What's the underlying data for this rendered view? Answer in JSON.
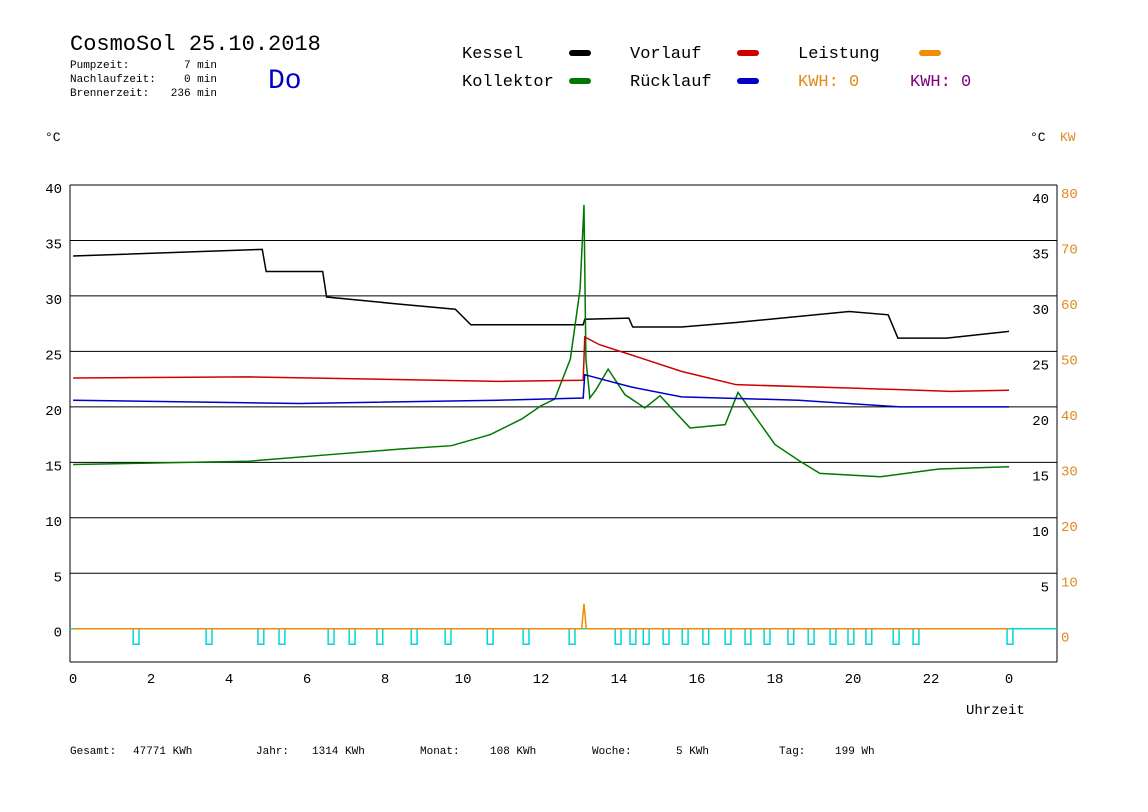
{
  "chart_data": {
    "type": "line",
    "title": "CosmoSol 25.10.2018",
    "day": "Do",
    "info": [
      {
        "label": "Pumpzeit:",
        "value": "7 min"
      },
      {
        "label": "Nachlaufzeit:",
        "value": "0 min"
      },
      {
        "label": "Brennerzeit:",
        "value": "236 min"
      }
    ],
    "y_label": "°C",
    "y_right_label": "°C",
    "y2_label": "KW",
    "x_label": "Uhrzeit",
    "kwh_labels": [
      {
        "text": "KWH: 0",
        "color": "#e08a1e"
      },
      {
        "text": "KWH: 0",
        "color": "#800080"
      }
    ],
    "footer": [
      {
        "label": "Gesamt:",
        "value": "47771 KWh"
      },
      {
        "label": "Jahr:",
        "value": "1314 KWh"
      },
      {
        "label": "Monat:",
        "value": "108 KWh"
      },
      {
        "label": "Woche:",
        "value": "5 KWh"
      },
      {
        "label": "Tag:",
        "value": "199 Wh"
      }
    ],
    "xlim": [
      -0.08,
      25.23
    ],
    "xticks": [
      0,
      2,
      4,
      6,
      8,
      10,
      12,
      14,
      16,
      18,
      20,
      22,
      {
        "value": 24,
        "label": "0"
      }
    ],
    "ylim": [
      -3,
      40
    ],
    "yticks": [
      0,
      5,
      10,
      15,
      20,
      25,
      30,
      35,
      40
    ],
    "yticks_right": [
      5,
      10,
      15,
      20,
      25,
      30,
      35,
      40
    ],
    "y2lim": [
      -6,
      80
    ],
    "y2ticks": [
      0,
      10,
      20,
      30,
      40,
      50,
      60,
      70,
      80
    ],
    "grid": true,
    "series": [
      {
        "name": "Kessel",
        "color": "#000000",
        "x": [
          0,
          4.85,
          4.95,
          6.4,
          6.5,
          8.26,
          9.8,
          10.2,
          13.08,
          13.12,
          14.25,
          14.35,
          15.6,
          17.0,
          19.9,
          20.9,
          21.15,
          22.4,
          24.0
        ],
        "values": [
          33.6,
          34.2,
          32.2,
          32.2,
          29.9,
          29.3,
          28.8,
          27.4,
          27.4,
          27.9,
          28.0,
          27.2,
          27.2,
          27.6,
          28.6,
          28.3,
          26.2,
          26.2,
          26.8
        ]
      },
      {
        "name": "Kollektor",
        "color": "#007800",
        "x": [
          0,
          4.5,
          6.6,
          8.4,
          9.7,
          10.7,
          11.5,
          12.0,
          12.35,
          12.75,
          13.0,
          13.1,
          13.15,
          13.25,
          13.4,
          13.72,
          14.15,
          14.66,
          15.05,
          15.82,
          16.72,
          17.05,
          18.0,
          18.64,
          19.15,
          20.7,
          22.2,
          24.0
        ],
        "values": [
          14.8,
          15.1,
          15.7,
          16.2,
          16.5,
          17.5,
          18.9,
          20.1,
          20.7,
          24.3,
          30.6,
          38.2,
          24.3,
          20.8,
          21.5,
          23.4,
          21.1,
          19.9,
          21.0,
          18.1,
          18.4,
          21.3,
          16.6,
          15.1,
          14.0,
          13.7,
          14.4,
          14.6
        ]
      },
      {
        "name": "Vorlauf",
        "color": "#d00000",
        "x": [
          0,
          4.5,
          10.9,
          13.08,
          13.12,
          13.5,
          14.3,
          15.6,
          17.0,
          19.9,
          22.5,
          24.0
        ],
        "values": [
          22.6,
          22.7,
          22.3,
          22.4,
          26.3,
          25.6,
          24.7,
          23.2,
          22.0,
          21.7,
          21.4,
          21.5
        ]
      },
      {
        "name": "Rücklauf",
        "color": "#0000c8",
        "x": [
          0,
          5.8,
          10.9,
          13.08,
          13.12,
          14.3,
          15.6,
          18.6,
          21.2,
          24.0
        ],
        "values": [
          20.6,
          20.3,
          20.6,
          20.8,
          22.9,
          21.8,
          20.9,
          20.6,
          20.0,
          20.0
        ]
      },
      {
        "name": "Leistung",
        "color": "#f08c00",
        "axis": "y2",
        "x": [
          0,
          13.04,
          13.1,
          13.16,
          24.0
        ],
        "values": [
          0,
          0,
          4.5,
          0,
          0
        ]
      }
    ],
    "pump": {
      "color": "#00d8d8",
      "low": -1.4,
      "width": 0.15,
      "starts": [
        1.54,
        3.41,
        4.74,
        5.28,
        6.54,
        7.08,
        7.79,
        8.67,
        9.54,
        10.62,
        11.54,
        12.72,
        13.9,
        14.28,
        14.62,
        15.13,
        15.62,
        16.15,
        16.72,
        17.23,
        17.72,
        18.33,
        18.85,
        19.41,
        19.87,
        20.33,
        21.03,
        21.54,
        23.95
      ]
    }
  }
}
